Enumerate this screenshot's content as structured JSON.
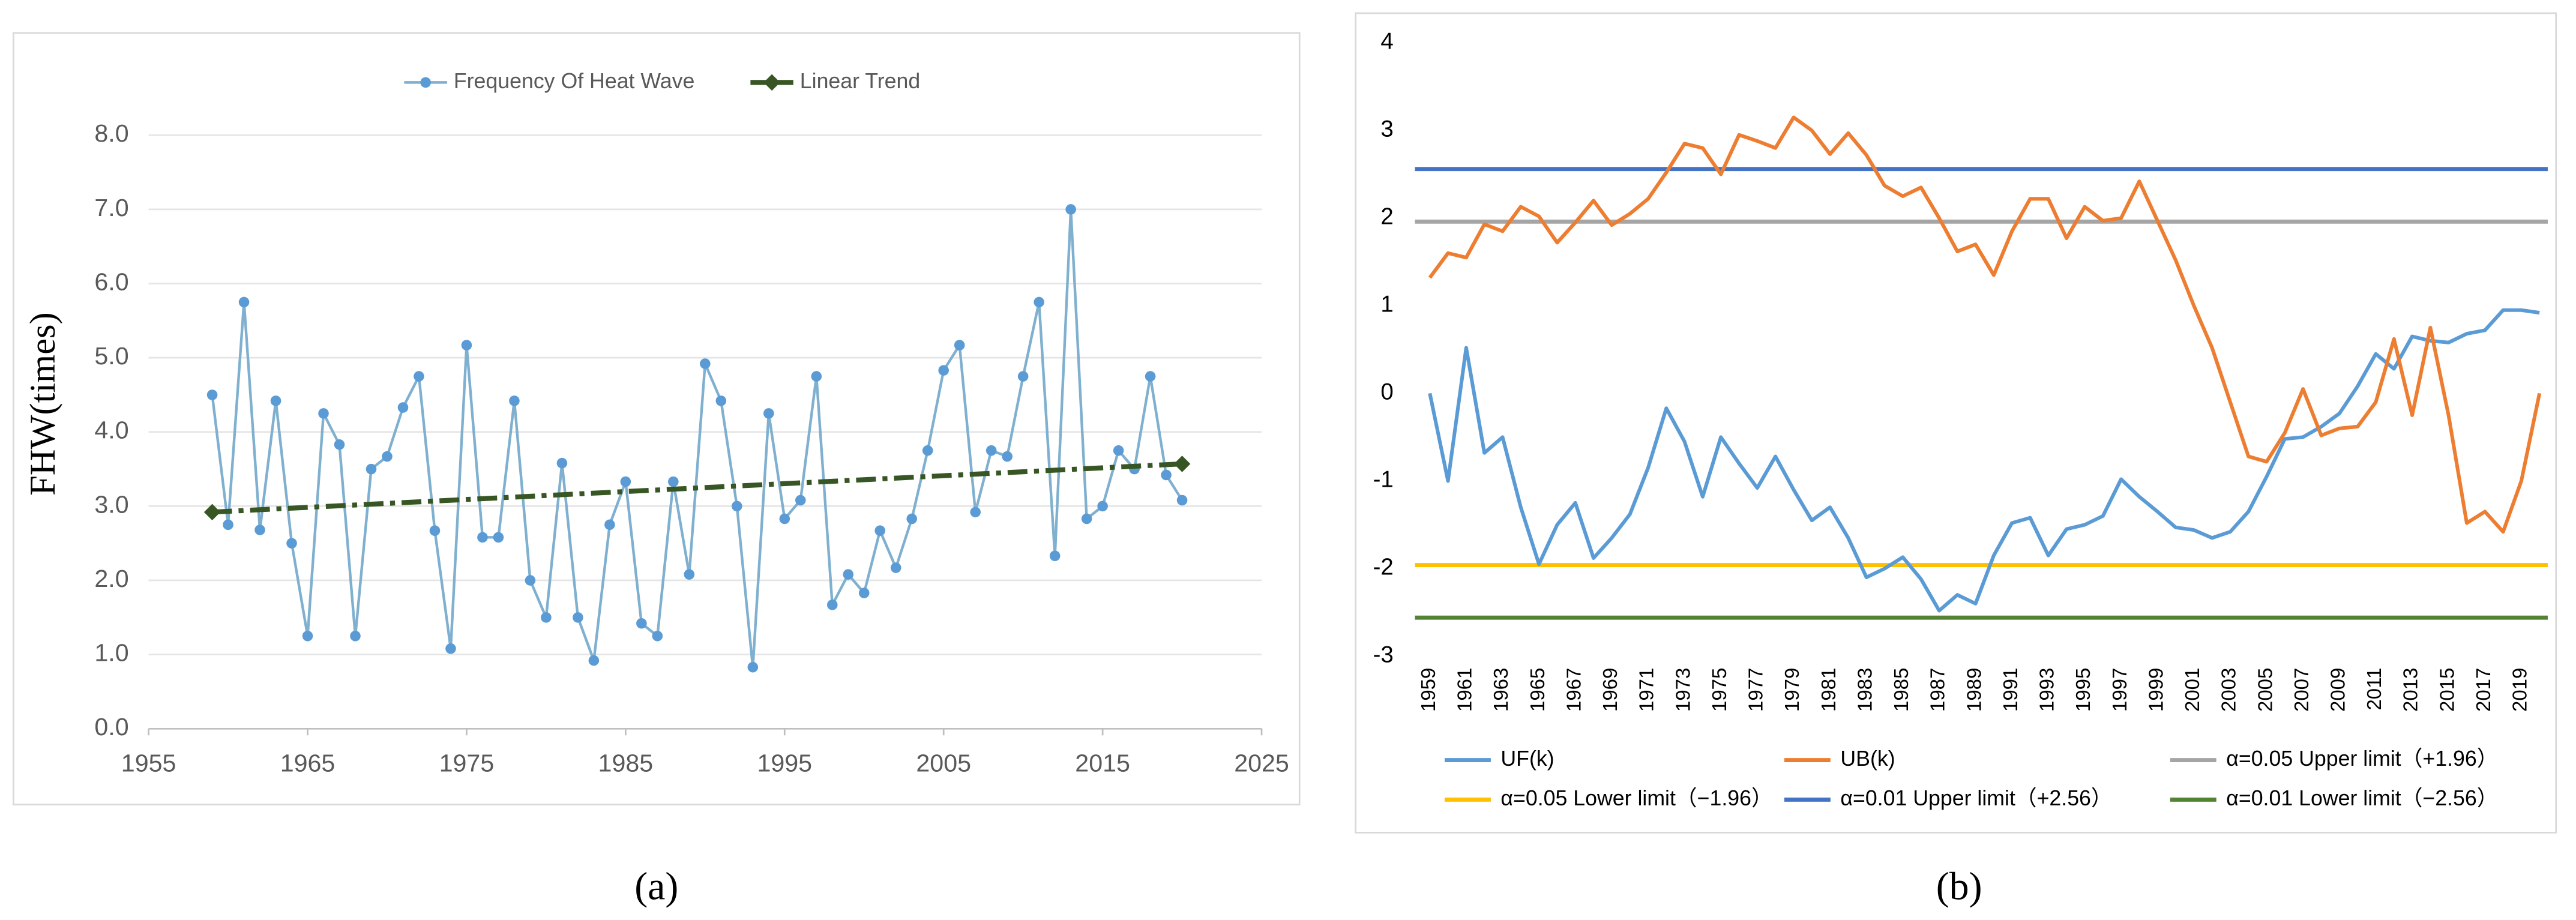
{
  "chart_data": [
    {
      "type": "line",
      "y_label": "FHW(times)",
      "caption": "(a)",
      "x": [
        1959,
        1960,
        1961,
        1962,
        1963,
        1964,
        1965,
        1966,
        1967,
        1968,
        1969,
        1970,
        1971,
        1972,
        1973,
        1974,
        1975,
        1976,
        1977,
        1978,
        1979,
        1980,
        1981,
        1982,
        1983,
        1984,
        1985,
        1986,
        1987,
        1988,
        1989,
        1990,
        1991,
        1992,
        1993,
        1994,
        1995,
        1996,
        1997,
        1998,
        1999,
        2000,
        2001,
        2002,
        2003,
        2004,
        2005,
        2006,
        2007,
        2008,
        2009,
        2010,
        2011,
        2012,
        2013,
        2014,
        2015,
        2016,
        2017,
        2018,
        2019,
        2020
      ],
      "series": [
        {
          "name": "Frequency Of Heat Wave",
          "color": "#7fb0cf",
          "values": [
            4.5,
            2.75,
            5.75,
            2.68,
            4.42,
            2.5,
            1.25,
            4.25,
            3.83,
            1.25,
            3.5,
            3.67,
            4.33,
            4.75,
            2.67,
            1.08,
            5.17,
            2.58,
            2.58,
            4.42,
            2.0,
            1.5,
            3.58,
            1.5,
            0.92,
            2.75,
            3.33,
            1.42,
            1.25,
            3.33,
            2.08,
            4.92,
            4.42,
            3.0,
            0.83,
            4.25,
            2.83,
            3.08,
            4.75,
            1.67,
            2.08,
            1.83,
            2.67,
            2.17,
            2.83,
            3.75,
            4.83,
            5.17,
            2.92,
            3.75,
            3.67,
            4.75,
            5.75,
            2.33,
            7.0,
            2.83,
            3.0,
            3.75,
            3.5,
            4.75,
            3.42,
            3.08
          ]
        },
        {
          "name": "Linear Trend",
          "color": "#375623",
          "x": [
            1959,
            2020
          ],
          "values": [
            2.92,
            3.57
          ]
        }
      ],
      "xlim": [
        1955,
        2025
      ],
      "xticks": [
        1955,
        1965,
        1975,
        1985,
        1995,
        2005,
        2015,
        2025
      ],
      "ylim": [
        0,
        8
      ],
      "yticks": [
        {
          "value": 0,
          "label": "0.0"
        },
        {
          "value": 1,
          "label": "1.0"
        },
        {
          "value": 2,
          "label": "2.0"
        },
        {
          "value": 3,
          "label": "3.0"
        },
        {
          "value": 4,
          "label": "4.0"
        },
        {
          "value": 5,
          "label": "5.0"
        },
        {
          "value": 6,
          "label": "6.0"
        },
        {
          "value": 7,
          "label": "7.0"
        },
        {
          "value": 8,
          "label": "8.0"
        }
      ],
      "grid": true,
      "legend": "top"
    },
    {
      "type": "line",
      "caption": "(b)",
      "categories": [
        "1959",
        null,
        "1961",
        null,
        "1963",
        null,
        "1965",
        null,
        "1967",
        null,
        "1969",
        null,
        "1971",
        null,
        "1973",
        null,
        "1975",
        null,
        "1977",
        null,
        "1979",
        null,
        "1981",
        null,
        "1983",
        null,
        "1985",
        null,
        "1987",
        null,
        "1989",
        null,
        "1991",
        null,
        "1993",
        null,
        "1995",
        null,
        "1997",
        null,
        "1999",
        null,
        "2001",
        null,
        "2003",
        null,
        "2005",
        null,
        "2007",
        null,
        "2009",
        null,
        "2011",
        null,
        "2013",
        null,
        "2015",
        null,
        "2017",
        null,
        "2019",
        null
      ],
      "series": [
        {
          "name": "UF(k)",
          "color": "#5b9bd5",
          "values": [
            0,
            -1.0,
            0.52,
            -0.68,
            -0.5,
            -1.3,
            -1.95,
            -1.5,
            -1.25,
            -1.88,
            -1.65,
            -1.38,
            -0.85,
            -0.17,
            -0.55,
            -1.18,
            -0.5,
            -0.8,
            -1.08,
            -0.72,
            -1.1,
            -1.45,
            -1.3,
            -1.65,
            -2.1,
            -2.0,
            -1.87,
            -2.12,
            -2.48,
            -2.3,
            -2.4,
            -1.85,
            -1.48,
            -1.42,
            -1.85,
            -1.55,
            -1.5,
            -1.4,
            -0.98,
            -1.18,
            -1.35,
            -1.53,
            -1.56,
            -1.65,
            -1.58,
            -1.35,
            -0.95,
            -0.52,
            -0.5,
            -0.38,
            -0.23,
            0.08,
            0.45,
            0.28,
            0.65,
            0.6,
            0.58,
            0.68,
            0.72,
            0.95,
            0.95,
            0.92
          ]
        },
        {
          "name": "UB(k)",
          "color": "#ed7d31",
          "values": [
            1.32,
            1.6,
            1.55,
            1.93,
            1.85,
            2.13,
            2.02,
            1.72,
            1.95,
            2.2,
            1.92,
            2.05,
            2.22,
            2.52,
            2.85,
            2.8,
            2.5,
            2.95,
            2.88,
            2.8,
            3.15,
            3.0,
            2.73,
            2.97,
            2.72,
            2.37,
            2.25,
            2.35,
            2.0,
            1.62,
            1.7,
            1.35,
            1.85,
            2.22,
            2.22,
            1.77,
            2.13,
            1.97,
            2.0,
            2.42,
            1.97,
            1.52,
            1.0,
            0.52,
            -0.1,
            -0.72,
            -0.78,
            -0.45,
            0.05,
            -0.48,
            -0.4,
            -0.38,
            -0.1,
            0.62,
            -0.25,
            0.75,
            -0.25,
            -1.48,
            -1.35,
            -1.58,
            -1.0,
            0.0
          ]
        }
      ],
      "reference_lines": [
        {
          "name": "α=0.05 Upper limit（+1.96）",
          "color": "#a5a5a5",
          "value": 1.96
        },
        {
          "name": "α=0.05 Lower limit（−1.96）",
          "color": "#ffc000",
          "value": -1.96
        },
        {
          "name": "α=0.01 Upper limit（+2.56）",
          "color": "#4472c4",
          "value": 2.56
        },
        {
          "name": "α=0.01 Lower limit（−2.56）",
          "color": "#548235",
          "value": -2.56
        }
      ],
      "ylim": [
        -3,
        4
      ],
      "yticks": [
        -3,
        -2,
        -1,
        0,
        1,
        2,
        3,
        4
      ],
      "grid": false,
      "legend": "bottom"
    }
  ]
}
